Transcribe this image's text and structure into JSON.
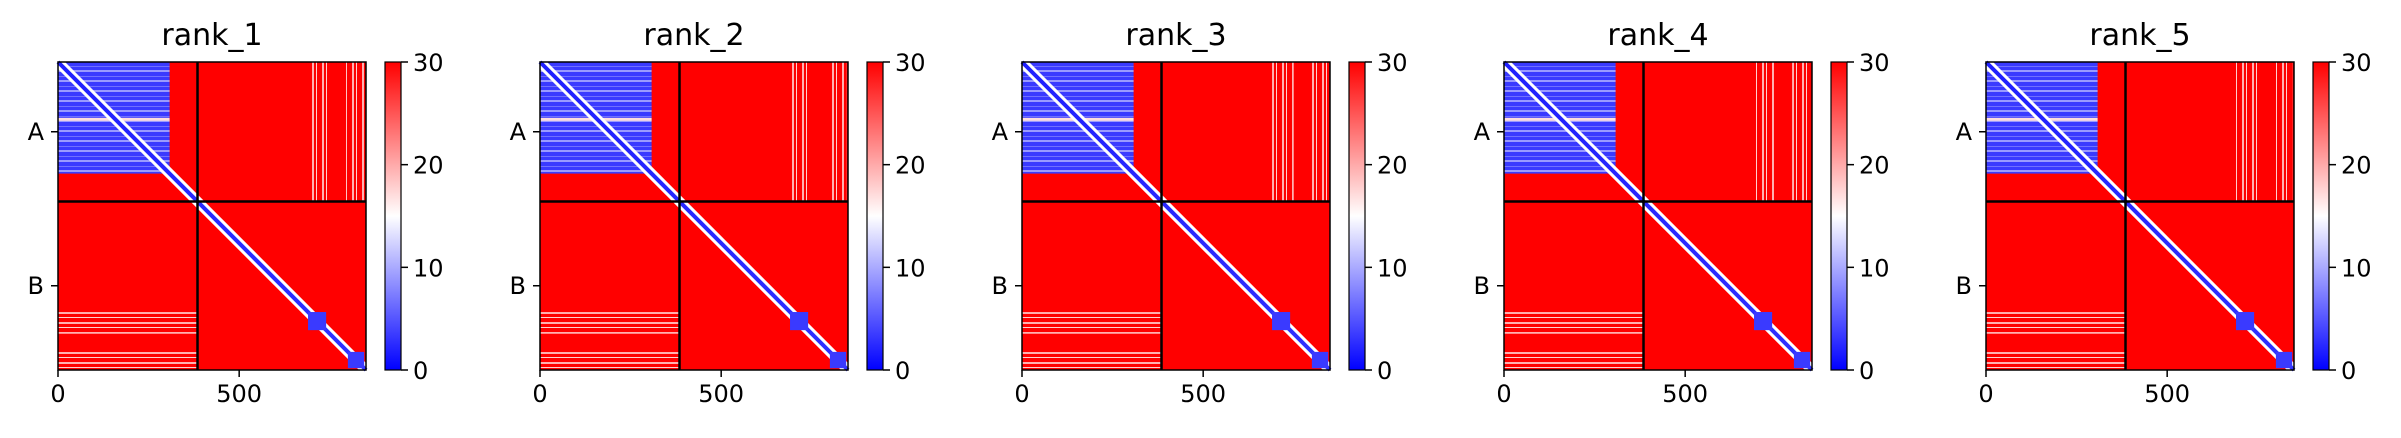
{
  "chart_data": [
    {
      "type": "heatmap",
      "title": "rank_1",
      "xlabel": "",
      "ylabel": "",
      "xlim": [
        0,
        850
      ],
      "x_ticks": [
        0,
        500
      ],
      "y_ticks": [
        "A",
        "B"
      ],
      "chain_boundary": 385,
      "colorbar": {
        "min": 0,
        "max": 30,
        "ticks": [
          0,
          10,
          20,
          30
        ],
        "colors": [
          "#0000ff",
          "#ffffff",
          "#ff0000"
        ]
      }
    },
    {
      "type": "heatmap",
      "title": "rank_2",
      "xlabel": "",
      "ylabel": "",
      "xlim": [
        0,
        850
      ],
      "x_ticks": [
        0,
        500
      ],
      "y_ticks": [
        "A",
        "B"
      ],
      "chain_boundary": 385,
      "colorbar": {
        "min": 0,
        "max": 30,
        "ticks": [
          0,
          10,
          20,
          30
        ],
        "colors": [
          "#0000ff",
          "#ffffff",
          "#ff0000"
        ]
      }
    },
    {
      "type": "heatmap",
      "title": "rank_3",
      "xlabel": "",
      "ylabel": "",
      "xlim": [
        0,
        850
      ],
      "x_ticks": [
        0,
        500
      ],
      "y_ticks": [
        "A",
        "B"
      ],
      "chain_boundary": 385,
      "colorbar": {
        "min": 0,
        "max": 30,
        "ticks": [
          0,
          10,
          20,
          30
        ],
        "colors": [
          "#0000ff",
          "#ffffff",
          "#ff0000"
        ]
      }
    },
    {
      "type": "heatmap",
      "title": "rank_4",
      "xlabel": "",
      "ylabel": "",
      "xlim": [
        0,
        850
      ],
      "x_ticks": [
        0,
        500
      ],
      "y_ticks": [
        "A",
        "B"
      ],
      "chain_boundary": 385,
      "colorbar": {
        "min": 0,
        "max": 30,
        "ticks": [
          0,
          10,
          20,
          30
        ],
        "colors": [
          "#0000ff",
          "#ffffff",
          "#ff0000"
        ]
      }
    },
    {
      "type": "heatmap",
      "title": "rank_5",
      "xlabel": "",
      "ylabel": "",
      "xlim": [
        0,
        850
      ],
      "x_ticks": [
        0,
        500
      ],
      "y_ticks": [
        "A",
        "B"
      ],
      "chain_boundary": 385,
      "colorbar": {
        "min": 0,
        "max": 30,
        "ticks": [
          0,
          10,
          20,
          30
        ],
        "colors": [
          "#0000ff",
          "#ffffff",
          "#ff0000"
        ]
      }
    }
  ]
}
